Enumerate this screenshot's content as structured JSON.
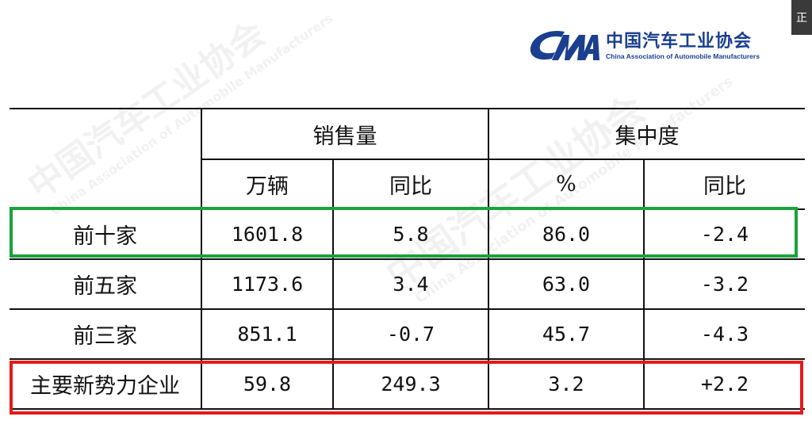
{
  "logo": {
    "cn_name": "中国汽车工业协会",
    "en_name": "China Association of Automobile Manufacturers",
    "color": "#1a3f8f"
  },
  "side_tab": "正",
  "table": {
    "header1": [
      "销售量",
      "集中度"
    ],
    "header2": [
      "万辆",
      "同比",
      "%",
      "同比"
    ],
    "rows": [
      {
        "label": "前十家",
        "volume": "1601.8",
        "volume_yoy": "5.8",
        "share": "86.0",
        "share_yoy": "-2.4"
      },
      {
        "label": "前五家",
        "volume": "1173.6",
        "volume_yoy": "3.4",
        "share": "63.0",
        "share_yoy": "-3.2"
      },
      {
        "label": "前三家",
        "volume": "851.1",
        "volume_yoy": "-0.7",
        "share": "45.7",
        "share_yoy": "-4.3"
      },
      {
        "label": "主要新势力企业",
        "volume": "59.8",
        "volume_yoy": "249.3",
        "share": "3.2",
        "share_yoy": "+2.2"
      }
    ]
  },
  "highlights": {
    "green": "#19a33a",
    "red": "#e31b1b"
  },
  "watermark": {
    "cn": "中国汽车工业协会",
    "en": "China Association of Automobile Manufacturers"
  }
}
